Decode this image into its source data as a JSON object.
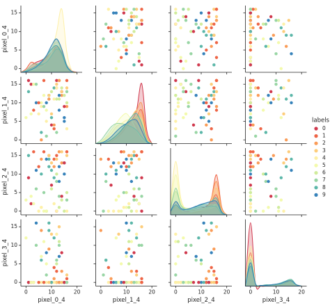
{
  "chart_data": {
    "type": "pairplot",
    "variables": [
      "pixel_0_4",
      "pixel_1_4",
      "pixel_2_4",
      "pixel_3_4"
    ],
    "hue_title": "labels",
    "hue_names": [
      "0",
      "1",
      "2",
      "3",
      "4",
      "5",
      "6",
      "7",
      "8",
      "9"
    ],
    "colors": [
      "#d0384d",
      "#ee6445",
      "#fa9c58",
      "#fdcd7b",
      "#fef0a7",
      "#f3faac",
      "#d0ec9c",
      "#98d5a4",
      "#5cb7a9",
      "#3682ba"
    ],
    "xlim": [
      -2,
      22
    ],
    "xticks": [
      0,
      10,
      20
    ],
    "ylim": [
      -1,
      17
    ],
    "yticks": [
      0,
      5,
      10,
      15
    ],
    "points": {
      "pixel_0_4": [
        12,
        3,
        14,
        16,
        8,
        6,
        10,
        13,
        9,
        15,
        2,
        11,
        16,
        13,
        5,
        7,
        14,
        12,
        1,
        4,
        10,
        16,
        9,
        12,
        6,
        0,
        15,
        8,
        11,
        13,
        14,
        5,
        13,
        10,
        16,
        3,
        12,
        7,
        9,
        15,
        1,
        12,
        6,
        14,
        11,
        8,
        16,
        4,
        10,
        13,
        15,
        7,
        11,
        9,
        12,
        2,
        13,
        16,
        6,
        8
      ],
      "pixel_1_4": [
        16,
        8,
        12,
        14,
        5,
        10,
        13,
        16,
        11,
        6,
        15,
        3,
        9,
        16,
        7,
        12,
        14,
        2,
        13,
        10,
        4,
        16,
        11,
        15,
        9,
        6,
        12,
        1,
        14,
        8,
        13,
        10,
        16,
        7,
        3,
        15,
        11,
        9,
        12,
        5,
        16,
        14,
        0,
        13,
        11,
        8,
        10,
        15,
        6,
        12,
        9,
        16,
        4,
        12,
        14,
        7,
        11,
        13,
        2,
        10
      ],
      "pixel_2_4": [
        0,
        16,
        13,
        15,
        0,
        1,
        6,
        4,
        12,
        10,
        2,
        14,
        16,
        16,
        0,
        0,
        3,
        8,
        15,
        11,
        7,
        16,
        15,
        14,
        1,
        3,
        0,
        0,
        9,
        12,
        4,
        12,
        16,
        13,
        0,
        2,
        10,
        5,
        14,
        13,
        9,
        15,
        14,
        16,
        2,
        0,
        5,
        6,
        11,
        8,
        13,
        16,
        12,
        15,
        0,
        4,
        1,
        3,
        10,
        14
      ],
      "pixel_3_4": [
        0,
        0,
        3,
        2,
        0,
        7,
        0,
        10,
        14,
        0,
        0,
        4,
        0,
        15,
        0,
        11,
        0,
        6,
        0,
        16,
        0,
        1,
        9,
        0,
        0,
        12,
        0,
        2,
        12,
        0,
        8,
        0,
        0,
        13,
        0,
        0,
        5,
        0,
        16,
        0,
        0,
        3,
        14,
        0,
        0,
        5,
        0,
        10,
        0,
        7,
        0,
        0,
        1,
        0,
        13,
        0,
        11,
        0,
        6,
        8
      ],
      "labels": [
        0,
        1,
        2,
        3,
        4,
        5,
        6,
        7,
        8,
        9,
        0,
        1,
        2,
        3,
        4,
        5,
        6,
        7,
        8,
        9,
        0,
        1,
        2,
        3,
        4,
        5,
        6,
        7,
        8,
        9,
        0,
        1,
        2,
        3,
        4,
        5,
        6,
        7,
        8,
        9,
        0,
        1,
        2,
        3,
        4,
        5,
        6,
        7,
        8,
        9,
        0,
        1,
        2,
        3,
        4,
        5,
        6,
        7,
        8,
        9
      ]
    },
    "kde": {
      "x": [
        -2,
        0,
        2,
        4,
        6,
        8,
        10,
        12,
        14,
        16,
        18,
        20
      ],
      "ylim": [
        0,
        10
      ],
      "density": [
        [
          [
            0,
            0.3,
            1,
            1.5,
            1.8,
            2.3,
            3,
            3.8,
            3.2,
            1.2,
            0.2,
            0
          ],
          [
            0,
            0.5,
            1.5,
            1.2,
            1,
            1.5,
            2.5,
            3.5,
            3,
            1,
            0.2,
            0
          ],
          [
            0,
            0.2,
            0.6,
            1,
            1.5,
            2.2,
            3,
            3.5,
            2.5,
            0.8,
            0.1,
            0
          ],
          [
            0,
            0.1,
            0.4,
            0.8,
            1.3,
            2,
            3,
            4,
            3,
            1,
            0.1,
            0
          ],
          [
            0,
            0.1,
            0.3,
            0.5,
            0.8,
            1.5,
            3,
            6,
            9.5,
            3,
            0.2,
            0
          ],
          [
            0,
            0.2,
            0.6,
            1,
            1.5,
            2.5,
            3.5,
            4.5,
            3.5,
            1.2,
            0.1,
            0
          ],
          [
            0,
            0.1,
            0.3,
            0.8,
            1.5,
            2.5,
            4,
            5,
            3,
            0.8,
            0.1,
            0
          ],
          [
            0,
            0.3,
            1,
            1.3,
            1.2,
            1.5,
            2.5,
            3.5,
            3,
            1,
            0.1,
            0
          ],
          [
            0,
            0.2,
            0.6,
            1,
            1.6,
            2.5,
            3.5,
            4,
            2.8,
            0.8,
            0.1,
            0
          ],
          [
            0,
            0.1,
            0.4,
            0.8,
            1.5,
            2.5,
            4,
            5,
            3.5,
            1,
            0.1,
            0
          ]
        ],
        [
          [
            0,
            0,
            0.1,
            0.3,
            0.8,
            1.5,
            2.5,
            3.5,
            5,
            9,
            2,
            0
          ],
          [
            0,
            0,
            0.2,
            0.5,
            1,
            1.8,
            2.8,
            3.5,
            4,
            5,
            1,
            0
          ],
          [
            0,
            0,
            0.2,
            0.6,
            1.2,
            2,
            3,
            4,
            5,
            6,
            1.2,
            0
          ],
          [
            0,
            0,
            0.1,
            0.4,
            1,
            2,
            3,
            4,
            5,
            4,
            0.8,
            0
          ],
          [
            0,
            0.2,
            0.8,
            1.5,
            2.5,
            3,
            3.5,
            3.5,
            3,
            1.5,
            0.3,
            0
          ],
          [
            0,
            0.3,
            1,
            2,
            3,
            4,
            4.5,
            3.5,
            2,
            0.8,
            0.1,
            0
          ],
          [
            0,
            0.1,
            0.5,
            1,
            1.8,
            2.5,
            3,
            3.5,
            4,
            3.5,
            0.6,
            0
          ],
          [
            0,
            0.5,
            1.5,
            2.5,
            3,
            3,
            2.8,
            2.5,
            2,
            1,
            0.2,
            0
          ],
          [
            0,
            0,
            0.2,
            0.6,
            1.2,
            2,
            3,
            4,
            4.5,
            3,
            0.5,
            0
          ],
          [
            0,
            0.1,
            0.4,
            1,
            1.8,
            2.5,
            3,
            3.5,
            3.5,
            2,
            0.3,
            0
          ]
        ],
        [
          [
            0.5,
            2,
            1,
            0.5,
            0.6,
            0.8,
            1,
            1.3,
            2,
            3,
            0.6,
            0
          ],
          [
            0.5,
            1.5,
            0.6,
            0.3,
            0.3,
            0.4,
            0.6,
            1,
            2.5,
            6,
            1.2,
            0
          ],
          [
            0.4,
            1.2,
            0.5,
            0.3,
            0.3,
            0.4,
            0.6,
            1,
            2.5,
            5,
            1,
            0
          ],
          [
            0.4,
            1.5,
            0.6,
            0.3,
            0.3,
            0.5,
            0.7,
            1,
            2,
            4,
            0.8,
            0
          ],
          [
            2,
            8,
            2.5,
            0.8,
            0.6,
            0.6,
            0.7,
            0.8,
            1,
            1.2,
            0.3,
            0
          ],
          [
            1.5,
            6,
            2,
            0.8,
            0.7,
            0.8,
            1,
            1,
            1.2,
            1.5,
            0.3,
            0
          ],
          [
            1,
            3.5,
            1.5,
            1,
            1,
            1.2,
            1.5,
            1.5,
            1.5,
            1.5,
            0.3,
            0
          ],
          [
            1,
            4,
            1.5,
            0.8,
            0.8,
            1,
            1.2,
            1.2,
            1.3,
            1.2,
            0.2,
            0
          ],
          [
            0.5,
            1.5,
            0.8,
            0.8,
            1,
            1.2,
            1.5,
            1.8,
            2,
            2.5,
            0.5,
            0
          ],
          [
            0.5,
            2,
            1,
            0.8,
            1,
            1.3,
            1.6,
            1.8,
            2,
            2,
            0.4,
            0
          ]
        ],
        [
          [
            0.2,
            9.5,
            0.3,
            0,
            0,
            0,
            0,
            0.1,
            0.4,
            0.6,
            0.2,
            0
          ],
          [
            0.1,
            5,
            0.3,
            0.1,
            0.1,
            0.1,
            0.1,
            0.2,
            0.5,
            0.7,
            0.2,
            0
          ],
          [
            0.1,
            4,
            0.3,
            0.1,
            0.1,
            0.1,
            0.2,
            0.3,
            0.6,
            0.8,
            0.2,
            0
          ],
          [
            0.1,
            3.5,
            0.3,
            0.1,
            0.1,
            0.2,
            0.2,
            0.3,
            0.5,
            0.7,
            0.2,
            0
          ],
          [
            0.2,
            6,
            0.4,
            0.1,
            0.1,
            0.1,
            0.1,
            0.2,
            0.4,
            0.5,
            0.1,
            0
          ],
          [
            0.1,
            4.5,
            0.3,
            0.1,
            0.1,
            0.1,
            0.2,
            0.3,
            0.5,
            0.6,
            0.2,
            0
          ],
          [
            0.1,
            3,
            0.3,
            0.1,
            0.1,
            0.2,
            0.3,
            0.4,
            0.7,
            0.9,
            0.2,
            0
          ],
          [
            0.1,
            4,
            0.3,
            0.1,
            0.1,
            0.1,
            0.2,
            0.3,
            0.5,
            0.6,
            0.2,
            0
          ],
          [
            0.1,
            3,
            0.3,
            0.1,
            0.2,
            0.2,
            0.3,
            0.5,
            0.8,
            1,
            0.2,
            0
          ],
          [
            0.1,
            3.5,
            0.3,
            0.1,
            0.1,
            0.2,
            0.3,
            0.4,
            0.7,
            0.8,
            0.2,
            0
          ]
        ]
      ]
    }
  }
}
